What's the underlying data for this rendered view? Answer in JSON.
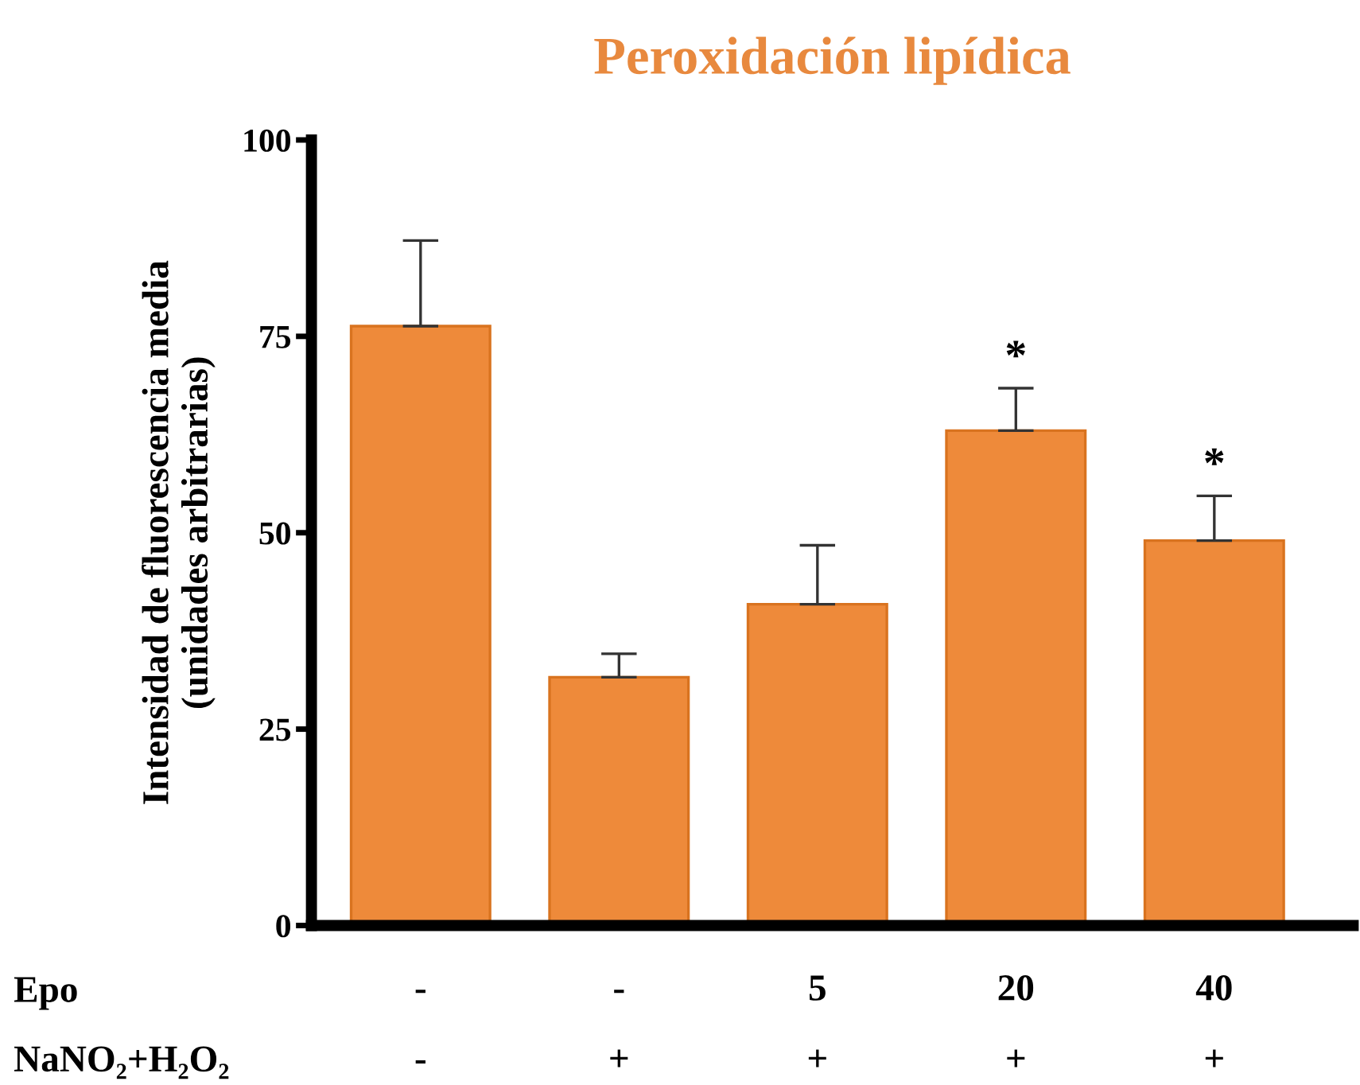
{
  "chart_data": {
    "type": "bar",
    "title": "Peroxidación lipídica",
    "ylabel": "Intensidad de fluorescencia media\n(unidades arbitrarias)",
    "categories": [
      "-\n-",
      "-\n+",
      "5\n+",
      "20\n+",
      "40\n+"
    ],
    "values": [
      76.3,
      31.6,
      40.9,
      63.0,
      49.0
    ],
    "color": "#ee8a3a",
    "errors": [
      [
        76.3,
        87.2
      ],
      [
        31.6,
        34.6
      ],
      [
        40.9,
        48.4
      ],
      [
        63.0,
        68.4
      ],
      [
        49.0,
        54.7
      ]
    ],
    "ylim": [
      0,
      100
    ],
    "yticks": [
      0,
      25,
      50,
      75,
      100
    ],
    "grid": false,
    "value_labels": [
      null,
      null,
      null,
      "*",
      "*"
    ],
    "annotations": [
      "Epo",
      "NaNO₂+H₂O₂"
    ]
  }
}
